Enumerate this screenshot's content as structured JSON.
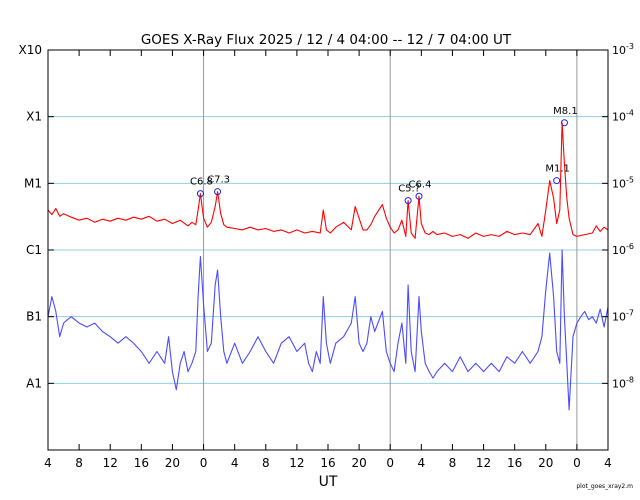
{
  "chart_data": {
    "type": "line",
    "title": "GOES X-Ray Flux   2025 / 12 /  4   04:00 -- 12 /  7   04:00   UT",
    "xlabel": "UT",
    "x_range_hours": [
      0,
      72
    ],
    "x_ticks": [
      {
        "h": 0,
        "label": "4"
      },
      {
        "h": 4,
        "label": "8"
      },
      {
        "h": 8,
        "label": "12"
      },
      {
        "h": 12,
        "label": "16"
      },
      {
        "h": 16,
        "label": "20"
      },
      {
        "h": 20,
        "label": "0"
      },
      {
        "h": 24,
        "label": "4"
      },
      {
        "h": 28,
        "label": "8"
      },
      {
        "h": 32,
        "label": "12"
      },
      {
        "h": 36,
        "label": "16"
      },
      {
        "h": 40,
        "label": "20"
      },
      {
        "h": 44,
        "label": "0"
      },
      {
        "h": 48,
        "label": "4"
      },
      {
        "h": 52,
        "label": "8"
      },
      {
        "h": 56,
        "label": "12"
      },
      {
        "h": 60,
        "label": "16"
      },
      {
        "h": 64,
        "label": "20"
      },
      {
        "h": 68,
        "label": "0"
      },
      {
        "h": 72,
        "label": "4"
      }
    ],
    "day_boundaries_hours": [
      20,
      44,
      68
    ],
    "y_scale": "log",
    "y_range": [
      1e-09,
      0.001
    ],
    "y_left_labels": [
      {
        "v": 0.001,
        "label": "X10"
      },
      {
        "v": 0.0001,
        "label": "X1"
      },
      {
        "v": 1e-05,
        "label": "M1"
      },
      {
        "v": 1e-06,
        "label": "C1"
      },
      {
        "v": 1e-07,
        "label": "B1"
      },
      {
        "v": 1e-08,
        "label": "A1"
      }
    ],
    "y_right_labels": [
      {
        "v": 0.001,
        "base": "10",
        "exp": "-3"
      },
      {
        "v": 0.0001,
        "base": "10",
        "exp": "-4"
      },
      {
        "v": 1e-05,
        "base": "10",
        "exp": "-5"
      },
      {
        "v": 1e-06,
        "base": "10",
        "exp": "-6"
      },
      {
        "v": 1e-07,
        "base": "10",
        "exp": "-7"
      },
      {
        "v": 1e-08,
        "base": "10",
        "exp": "-8"
      }
    ],
    "grid_lines": [
      0.0001,
      1e-05,
      1e-06,
      1e-07,
      1e-08
    ],
    "series": [
      {
        "key": "long",
        "color": "#ff0000",
        "x": [
          0,
          0.5,
          1,
          1.5,
          2,
          3,
          4,
          5,
          6,
          7,
          8,
          9,
          10,
          11,
          12,
          13,
          14,
          15,
          16,
          17,
          18,
          18.5,
          19,
          19.3,
          19.6,
          20,
          20.5,
          21,
          21.5,
          21.8,
          22.2,
          22.6,
          23,
          24,
          25,
          26,
          27,
          28,
          29,
          30,
          31,
          32,
          33,
          34,
          35,
          35.4,
          35.8,
          36.3,
          37,
          38,
          39,
          39.5,
          40,
          40.5,
          41,
          41.5,
          42,
          43,
          43.5,
          44,
          44.5,
          45,
          45.5,
          46,
          46.3,
          46.7,
          47.2,
          47.7,
          48,
          48.5,
          49,
          49.5,
          50,
          51,
          52,
          53,
          54,
          55,
          56,
          57,
          58,
          59,
          60,
          61,
          62,
          63,
          63.5,
          64,
          64.5,
          65,
          65.4,
          65.8,
          66.1,
          66.4,
          66.7,
          67,
          67.5,
          68,
          69,
          70,
          70.5,
          71,
          71.5,
          72
        ],
        "y": [
          4e-06,
          3.4e-06,
          4.2e-06,
          3.2e-06,
          3.5e-06,
          3.1e-06,
          2.8e-06,
          3e-06,
          2.6e-06,
          2.9e-06,
          2.7e-06,
          3e-06,
          2.8e-06,
          3.1e-06,
          2.9e-06,
          3.2e-06,
          2.7e-06,
          2.9e-06,
          2.5e-06,
          2.8e-06,
          2.3e-06,
          2.6e-06,
          2.4e-06,
          4e-06,
          7e-06,
          3e-06,
          2.2e-06,
          2.6e-06,
          4.5e-06,
          7.5e-06,
          3.5e-06,
          2.4e-06,
          2.2e-06,
          2.1e-06,
          2e-06,
          2.2e-06,
          2e-06,
          2.1e-06,
          1.9e-06,
          2e-06,
          1.8e-06,
          2e-06,
          1.8e-06,
          1.9e-06,
          1.8e-06,
          4e-06,
          2e-06,
          1.8e-06,
          2.2e-06,
          2.6e-06,
          2e-06,
          4.5e-06,
          3e-06,
          2e-06,
          2e-06,
          2.4e-06,
          3.2e-06,
          4.8e-06,
          3e-06,
          2.2e-06,
          1.8e-06,
          2e-06,
          2.8e-06,
          1.6e-06,
          5.5e-06,
          1.8e-06,
          1.5e-06,
          6.4e-06,
          2.5e-06,
          1.8e-06,
          1.7e-06,
          1.9e-06,
          1.7e-06,
          1.8e-06,
          1.6e-06,
          1.7e-06,
          1.5e-06,
          1.8e-06,
          1.6e-06,
          1.7e-06,
          1.6e-06,
          1.9e-06,
          1.7e-06,
          1.8e-06,
          1.7e-06,
          2.5e-06,
          1.6e-06,
          4e-06,
          1.1e-05,
          6e-06,
          2.5e-06,
          4e-06,
          8.1e-05,
          2e-05,
          6e-06,
          3e-06,
          1.7e-06,
          1.6e-06,
          1.7e-06,
          1.8e-06,
          2.3e-06,
          1.9e-06,
          2.2e-06,
          2e-06
        ]
      },
      {
        "key": "short",
        "color": "#4b4bff",
        "x": [
          0,
          0.5,
          1,
          1.5,
          2,
          2.5,
          3,
          4,
          5,
          6,
          7,
          8,
          9,
          10,
          11,
          12,
          13,
          14,
          15,
          15.5,
          16,
          16.5,
          17,
          17.5,
          18,
          18.5,
          19,
          19.3,
          19.6,
          20,
          20.5,
          21,
          21.5,
          21.8,
          22.2,
          22.6,
          23,
          24,
          25,
          26,
          27,
          28,
          29,
          30,
          31,
          32,
          33,
          33.5,
          34,
          34.5,
          35,
          35.4,
          35.8,
          36.3,
          37,
          38,
          39,
          39.5,
          40,
          40.5,
          41,
          41.5,
          42,
          43,
          43.5,
          44,
          44.5,
          45,
          45.5,
          46,
          46.3,
          46.7,
          47.2,
          47.7,
          48,
          48.5,
          49,
          49.5,
          50,
          51,
          52,
          53,
          54,
          55,
          56,
          57,
          58,
          59,
          60,
          61,
          62,
          63,
          63.5,
          64,
          64.5,
          65,
          65.4,
          65.8,
          66.1,
          66.4,
          66.7,
          67,
          67.5,
          68,
          68.5,
          69,
          69.5,
          70,
          70.5,
          71,
          71.5,
          72
        ],
        "y": [
          1e-07,
          2e-07,
          1.2e-07,
          5e-08,
          8e-08,
          9e-08,
          1e-07,
          8e-08,
          7e-08,
          8e-08,
          6e-08,
          5e-08,
          4e-08,
          5e-08,
          4e-08,
          3e-08,
          2e-08,
          3e-08,
          2e-08,
          5e-08,
          1.5e-08,
          8e-09,
          2e-08,
          3e-08,
          1.5e-08,
          2e-08,
          3e-08,
          2e-07,
          8e-07,
          1.5e-07,
          3e-08,
          4e-08,
          3e-07,
          5e-07,
          1e-07,
          3e-08,
          2e-08,
          4e-08,
          2e-08,
          3e-08,
          5e-08,
          3e-08,
          2e-08,
          4e-08,
          5e-08,
          3e-08,
          4e-08,
          2e-08,
          1.5e-08,
          3e-08,
          2e-08,
          2e-07,
          4e-08,
          2e-08,
          4e-08,
          5e-08,
          8e-08,
          2e-07,
          4e-08,
          3e-08,
          4e-08,
          1e-07,
          6e-08,
          1.2e-07,
          3e-08,
          2e-08,
          1.5e-08,
          4e-08,
          8e-08,
          2e-08,
          3e-07,
          3e-08,
          1.5e-08,
          2e-07,
          6e-08,
          2e-08,
          1.5e-08,
          1.2e-08,
          1.5e-08,
          2e-08,
          1.5e-08,
          2.5e-08,
          1.5e-08,
          2e-08,
          1.5e-08,
          2e-08,
          1.5e-08,
          2.5e-08,
          2e-08,
          3e-08,
          2e-08,
          3e-08,
          5e-08,
          2.5e-07,
          9e-07,
          2e-07,
          3e-08,
          2e-08,
          1e-06,
          1e-07,
          2e-08,
          4e-09,
          5e-08,
          8e-08,
          1e-07,
          1.2e-07,
          9e-08,
          1e-07,
          8e-08,
          1.3e-07,
          7e-08,
          1.4e-07
        ]
      }
    ],
    "annotations": [
      {
        "h": 19.6,
        "v": 7e-06,
        "label": "C6.8"
      },
      {
        "h": 21.8,
        "v": 7.5e-06,
        "label": "C7.3"
      },
      {
        "h": 46.3,
        "v": 5.5e-06,
        "label": "C5.?"
      },
      {
        "h": 47.7,
        "v": 6.4e-06,
        "label": "C6.4"
      },
      {
        "h": 65.4,
        "v": 1.1e-05,
        "label": "M1.1"
      },
      {
        "h": 66.4,
        "v": 8.1e-05,
        "label": "M8.1"
      }
    ]
  },
  "footer": {
    "credit": "plot_goes_xray2.m"
  }
}
